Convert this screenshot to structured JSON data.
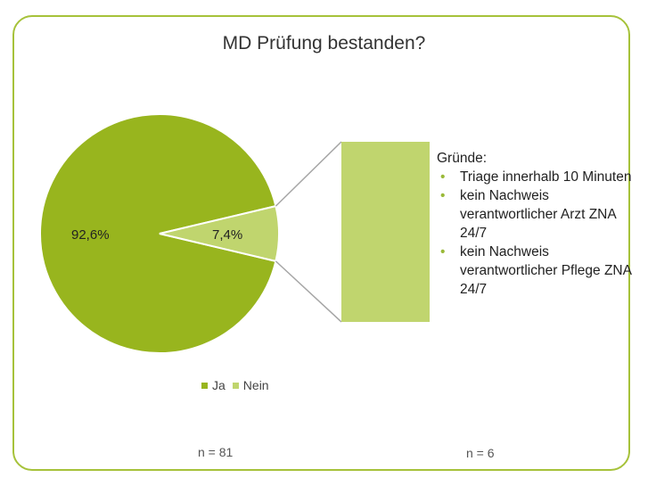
{
  "chart_data": {
    "type": "pie",
    "title": "MD Prüfung bestanden?",
    "categories": [
      "Ja",
      "Nein"
    ],
    "values": [
      92.6,
      7.4
    ],
    "value_labels": [
      "92,6%",
      "7,4%"
    ],
    "legend_placement": "bottom",
    "colors": [
      "#98b51e",
      "#c0d56e"
    ],
    "breakout": {
      "type": "bar",
      "of_category": "Nein",
      "color": "#c0d56e"
    },
    "annotations": {
      "reasons_heading": "Gründe:",
      "reasons": [
        "Triage innerhalb 10 Minuten",
        "kein Nachweis verantwortlicher Arzt ZNA 24/7",
        "kein Nachweis verantwortlicher Pflege ZNA 24/7"
      ],
      "n_left": "n = 81",
      "n_right": "n = 6"
    }
  },
  "colors": {
    "frame": "#a6c23a",
    "bullet": "#9ab938",
    "connector": "#a6a6a6"
  }
}
